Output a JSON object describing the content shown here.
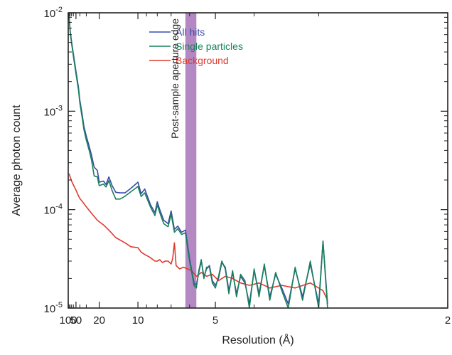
{
  "chart_data": {
    "type": "line",
    "xlabel": "Resolution (Å)",
    "ylabel": "Average photon count",
    "x_scale": "reciprocal",
    "y_scale": "log",
    "xlim": [
      100,
      2
    ],
    "ylim": [
      1e-05,
      0.01
    ],
    "x_ticks": [
      {
        "value": 100,
        "label": "100"
      },
      {
        "value": 50,
        "label": "50"
      },
      {
        "value": 20,
        "label": "20"
      },
      {
        "value": 10,
        "label": "10"
      },
      {
        "value": 5,
        "label": "5"
      },
      {
        "value": 2,
        "label": "2"
      }
    ],
    "y_ticks": [
      {
        "value": 0.01,
        "base": "10",
        "exp": "-2"
      },
      {
        "value": 0.001,
        "base": "10",
        "exp": "-3"
      },
      {
        "value": 0.0001,
        "base": "10",
        "exp": "-4"
      },
      {
        "value": 1e-05,
        "base": "10",
        "exp": "-5"
      }
    ],
    "legend_position": "top-left",
    "series": [
      {
        "name": "All hits",
        "color": "#3a4aa8",
        "points": [
          [
            94,
            0.0105
          ],
          [
            80,
            0.0066
          ],
          [
            70,
            0.0051
          ],
          [
            60,
            0.0038
          ],
          [
            50,
            0.00255
          ],
          [
            43,
            0.00175
          ],
          [
            40,
            0.0013
          ],
          [
            36,
            0.00095
          ],
          [
            33,
            0.0007
          ],
          [
            30,
            0.00056
          ],
          [
            27,
            0.00044
          ],
          [
            25,
            0.00036
          ],
          [
            23,
            0.00027
          ],
          [
            21,
            0.00025
          ],
          [
            20,
            0.00019
          ],
          [
            18,
            0.000195
          ],
          [
            17,
            0.00018
          ],
          [
            16,
            0.000215
          ],
          [
            15,
            0.000175
          ],
          [
            14,
            0.00015
          ],
          [
            13,
            0.000148
          ],
          [
            12,
            0.000148
          ],
          [
            11,
            0.000165
          ],
          [
            10,
            0.00019
          ],
          [
            9.6,
            0.000145
          ],
          [
            9.2,
            0.000162
          ],
          [
            8.6,
            0.000112
          ],
          [
            8.2,
            9.3e-05
          ],
          [
            8.0,
            0.00012
          ],
          [
            7.8,
            0.0001
          ],
          [
            7.5,
            7.8e-05
          ],
          [
            7.2,
            7.2e-05
          ],
          [
            7.0,
            9.7e-05
          ],
          [
            6.8,
            6.3e-05
          ],
          [
            6.6,
            6.8e-05
          ],
          [
            6.4,
            5.9e-05
          ],
          [
            6.2,
            6.2e-05
          ],
          [
            6.0,
            3.2e-05
          ],
          [
            5.9,
            2.4e-05
          ],
          [
            5.8,
            1.8e-05
          ],
          [
            5.7,
            1.7e-05
          ],
          [
            5.6,
            2.3e-05
          ],
          [
            5.5,
            3e-05
          ],
          [
            5.4,
            2.1e-05
          ],
          [
            5.3,
            2.5e-05
          ],
          [
            5.2,
            2.7e-05
          ],
          [
            5.1,
            1.9e-05
          ],
          [
            5.0,
            1.7e-05
          ],
          [
            4.9,
            2e-05
          ],
          [
            4.8,
            2.9e-05
          ],
          [
            4.7,
            2.6e-05
          ],
          [
            4.6,
            1.5e-05
          ],
          [
            4.5,
            2.3e-05
          ],
          [
            4.4,
            1.4e-05
          ],
          [
            4.3,
            2.1e-05
          ],
          [
            4.2,
            1.8e-05
          ],
          [
            4.1,
            1.1e-05
          ],
          [
            4.0,
            2.4e-05
          ],
          [
            3.9,
            1.4e-05
          ],
          [
            3.8,
            2.7e-05
          ],
          [
            3.7,
            1.3e-05
          ],
          [
            3.6,
            2.2e-05
          ],
          [
            3.5,
            1.6e-05
          ],
          [
            3.4,
            1.1e-05
          ],
          [
            3.3,
            2.5e-05
          ],
          [
            3.2,
            1.3e-05
          ],
          [
            3.1,
            2.8e-05
          ],
          [
            3.0,
            1.1e-05
          ],
          [
            2.95,
            4.8e-05
          ],
          [
            2.9,
            1.1e-05
          ]
        ]
      },
      {
        "name": "Single particles",
        "color": "#17815a",
        "points": [
          [
            94,
            0.0104
          ],
          [
            80,
            0.0064
          ],
          [
            70,
            0.0049
          ],
          [
            60,
            0.0036
          ],
          [
            50,
            0.0024
          ],
          [
            43,
            0.00165
          ],
          [
            40,
            0.00122
          ],
          [
            36,
            0.00088
          ],
          [
            33,
            0.00065
          ],
          [
            30,
            0.00051
          ],
          [
            27,
            0.0004
          ],
          [
            25,
            0.00032
          ],
          [
            23,
            0.00022
          ],
          [
            21,
            0.000215
          ],
          [
            20,
            0.000175
          ],
          [
            18,
            0.000182
          ],
          [
            17,
            0.00017
          ],
          [
            16,
            0.000197
          ],
          [
            15,
            0.000156
          ],
          [
            14,
            0.000128
          ],
          [
            13,
            0.000128
          ],
          [
            12,
            0.000137
          ],
          [
            11,
            0.000152
          ],
          [
            10,
            0.000172
          ],
          [
            9.6,
            0.000136
          ],
          [
            9.2,
            0.000148
          ],
          [
            8.6,
            0.000106
          ],
          [
            8.2,
            8.7e-05
          ],
          [
            8.0,
            0.000112
          ],
          [
            7.8,
            9.3e-05
          ],
          [
            7.5,
            7.2e-05
          ],
          [
            7.2,
            6.7e-05
          ],
          [
            7.0,
            9e-05
          ],
          [
            6.8,
            5.9e-05
          ],
          [
            6.6,
            6.4e-05
          ],
          [
            6.4,
            5.6e-05
          ],
          [
            6.2,
            5.8e-05
          ],
          [
            6.0,
            3e-05
          ],
          [
            5.9,
            2.3e-05
          ],
          [
            5.8,
            1.7e-05
          ],
          [
            5.7,
            1.6e-05
          ],
          [
            5.6,
            2.4e-05
          ],
          [
            5.5,
            3.1e-05
          ],
          [
            5.4,
            2e-05
          ],
          [
            5.3,
            2.6e-05
          ],
          [
            5.2,
            2.6e-05
          ],
          [
            5.1,
            1.8e-05
          ],
          [
            5.0,
            1.6e-05
          ],
          [
            4.9,
            2.1e-05
          ],
          [
            4.8,
            3e-05
          ],
          [
            4.7,
            2.5e-05
          ],
          [
            4.6,
            1.4e-05
          ],
          [
            4.5,
            2.4e-05
          ],
          [
            4.4,
            1.3e-05
          ],
          [
            4.3,
            2.2e-05
          ],
          [
            4.2,
            1.9e-05
          ],
          [
            4.1,
            1e-05
          ],
          [
            4.0,
            2.5e-05
          ],
          [
            3.9,
            1.3e-05
          ],
          [
            3.8,
            2.8e-05
          ],
          [
            3.7,
            1.2e-05
          ],
          [
            3.6,
            2.3e-05
          ],
          [
            3.5,
            1.5e-05
          ],
          [
            3.4,
            1e-05
          ],
          [
            3.3,
            2.6e-05
          ],
          [
            3.2,
            1.2e-05
          ],
          [
            3.1,
            3e-05
          ],
          [
            3.0,
            1e-05
          ],
          [
            2.95,
            4.7e-05
          ],
          [
            2.9,
            1e-05
          ]
        ]
      },
      {
        "name": "Background",
        "color": "#e03a2f",
        "points": [
          [
            90,
            0.000232
          ],
          [
            70,
            0.000195
          ],
          [
            60,
            0.000178
          ],
          [
            50,
            0.000158
          ],
          [
            43,
            0.000138
          ],
          [
            40,
            0.00013
          ],
          [
            36,
            0.000122
          ],
          [
            30,
            0.000107
          ],
          [
            25,
            9.2e-05
          ],
          [
            21,
            7.8e-05
          ],
          [
            18,
            7e-05
          ],
          [
            16,
            6.2e-05
          ],
          [
            14,
            5.2e-05
          ],
          [
            12,
            4.6e-05
          ],
          [
            11,
            4.2e-05
          ],
          [
            10,
            4.1e-05
          ],
          [
            9.6,
            3.7e-05
          ],
          [
            9.2,
            3.5e-05
          ],
          [
            8.7,
            3.3e-05
          ],
          [
            8.2,
            3e-05
          ],
          [
            8.0,
            3e-05
          ],
          [
            7.8,
            3.1e-05
          ],
          [
            7.6,
            2.9e-05
          ],
          [
            7.4,
            3e-05
          ],
          [
            7.2,
            3e-05
          ],
          [
            7.0,
            2.8e-05
          ],
          [
            6.9,
            3.2e-05
          ],
          [
            6.8,
            4.6e-05
          ],
          [
            6.7,
            2.7e-05
          ],
          [
            6.5,
            2.5e-05
          ],
          [
            6.3,
            2.6e-05
          ],
          [
            6.1,
            2.5e-05
          ],
          [
            5.9,
            2.4e-05
          ],
          [
            5.7,
            2.1e-05
          ],
          [
            5.5,
            2.3e-05
          ],
          [
            5.3,
            2.1e-05
          ],
          [
            5.1,
            2.2e-05
          ],
          [
            4.9,
            1.9e-05
          ],
          [
            4.7,
            2.1e-05
          ],
          [
            4.5,
            2e-05
          ],
          [
            4.3,
            1.8e-05
          ],
          [
            4.1,
            1.7e-05
          ],
          [
            3.9,
            1.8e-05
          ],
          [
            3.7,
            1.6e-05
          ],
          [
            3.5,
            1.7e-05
          ],
          [
            3.3,
            1.6e-05
          ],
          [
            3.1,
            1.8e-05
          ],
          [
            3.0,
            1.6e-05
          ],
          [
            2.95,
            1.5e-05
          ],
          [
            2.9,
            1.2e-05
          ]
        ]
      }
    ],
    "annotations": [
      {
        "text": "Post-sample aperture edge",
        "x_range": [
          6.2,
          5.7
        ],
        "color": "#a673b8"
      }
    ]
  }
}
